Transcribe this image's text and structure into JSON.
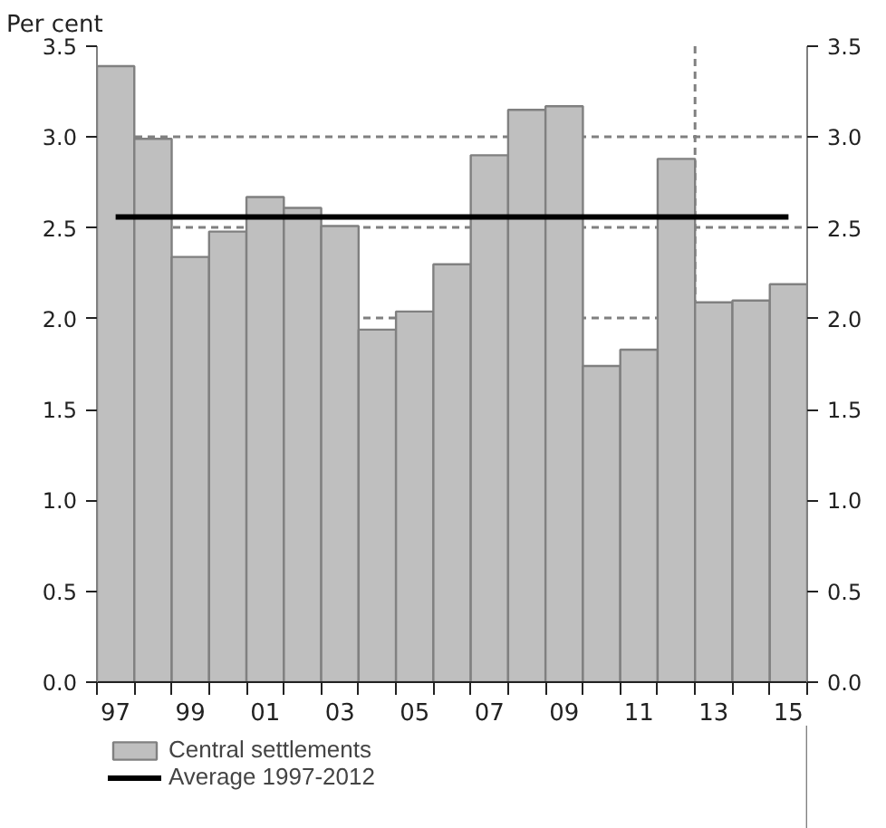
{
  "chart_data": {
    "type": "bar",
    "ylabel": "Per cent",
    "x": [
      1997,
      1998,
      1999,
      2000,
      2001,
      2002,
      2003,
      2004,
      2005,
      2006,
      2007,
      2008,
      2009,
      2010,
      2011,
      2012,
      2013,
      2014,
      2015
    ],
    "series": [
      {
        "name": "Central settlements",
        "color": "#bfbfbf",
        "values": [
          3.39,
          2.99,
          2.34,
          2.48,
          2.67,
          2.61,
          2.51,
          1.94,
          2.04,
          2.3,
          2.9,
          3.15,
          3.17,
          1.74,
          1.83,
          2.88,
          2.09,
          2.1,
          2.19
        ]
      },
      {
        "name": "Average 1997-2012",
        "type": "line",
        "color": "#000000",
        "x": [
          1997,
          2015
        ],
        "values": [
          2.56,
          2.56
        ]
      }
    ],
    "xlim": [
      1996.5,
      2015.5
    ],
    "xticks": [
      {
        "value": 1996.5,
        "label": null
      },
      {
        "value": 1997,
        "label": "97"
      },
      {
        "value": 1997.5,
        "label": null
      },
      {
        "value": 1998.5,
        "label": null
      },
      {
        "value": 1999,
        "label": "99"
      },
      {
        "value": 1999.5,
        "label": null
      },
      {
        "value": 2000.5,
        "label": null
      },
      {
        "value": 2001,
        "label": "01"
      },
      {
        "value": 2001.5,
        "label": null
      },
      {
        "value": 2002.5,
        "label": null
      },
      {
        "value": 2003,
        "label": "03"
      },
      {
        "value": 2003.5,
        "label": null
      },
      {
        "value": 2004.5,
        "label": null
      },
      {
        "value": 2005,
        "label": "05"
      },
      {
        "value": 2005.5,
        "label": null
      },
      {
        "value": 2006.5,
        "label": null
      },
      {
        "value": 2007,
        "label": "07"
      },
      {
        "value": 2007.5,
        "label": null
      },
      {
        "value": 2008.5,
        "label": null
      },
      {
        "value": 2009,
        "label": "09"
      },
      {
        "value": 2009.5,
        "label": null
      },
      {
        "value": 2010.5,
        "label": null
      },
      {
        "value": 2011,
        "label": "11"
      },
      {
        "value": 2011.5,
        "label": null
      },
      {
        "value": 2012.5,
        "label": null
      },
      {
        "value": 2013,
        "label": "13"
      },
      {
        "value": 2013.5,
        "label": null
      },
      {
        "value": 2014.5,
        "label": null
      },
      {
        "value": 2015,
        "label": "15"
      },
      {
        "value": 2015.5,
        "label": null
      }
    ],
    "ylim": [
      0,
      3.5
    ],
    "yticks": [
      {
        "value": 0,
        "label": "0.0"
      },
      {
        "value": 0.5,
        "label": "0.5"
      },
      {
        "value": 1,
        "label": "1.0"
      },
      {
        "value": 1.5,
        "label": "1.5"
      },
      {
        "value": 2,
        "label": "2.0"
      },
      {
        "value": 2.5,
        "label": "2.5"
      },
      {
        "value": 3,
        "label": "3.0"
      },
      {
        "value": 3.5,
        "label": "3.5"
      }
    ],
    "y2lim": [
      0,
      3.5
    ],
    "y2ticks": [
      {
        "value": 0,
        "label": "0.0"
      },
      {
        "value": 0.5,
        "label": "0.5"
      },
      {
        "value": 1,
        "label": "1.0"
      },
      {
        "value": 1.5,
        "label": "1.5"
      },
      {
        "value": 2,
        "label": "2.0"
      },
      {
        "value": 2.5,
        "label": "2.5"
      },
      {
        "value": 3,
        "label": "3.0"
      },
      {
        "value": 3.5,
        "label": "3.5"
      }
    ],
    "ref_lines": [
      {
        "axis": "x",
        "value": 2012.5,
        "color": "#808080",
        "line_style": "dashed"
      }
    ],
    "grid": "y",
    "legend": "bottom"
  }
}
